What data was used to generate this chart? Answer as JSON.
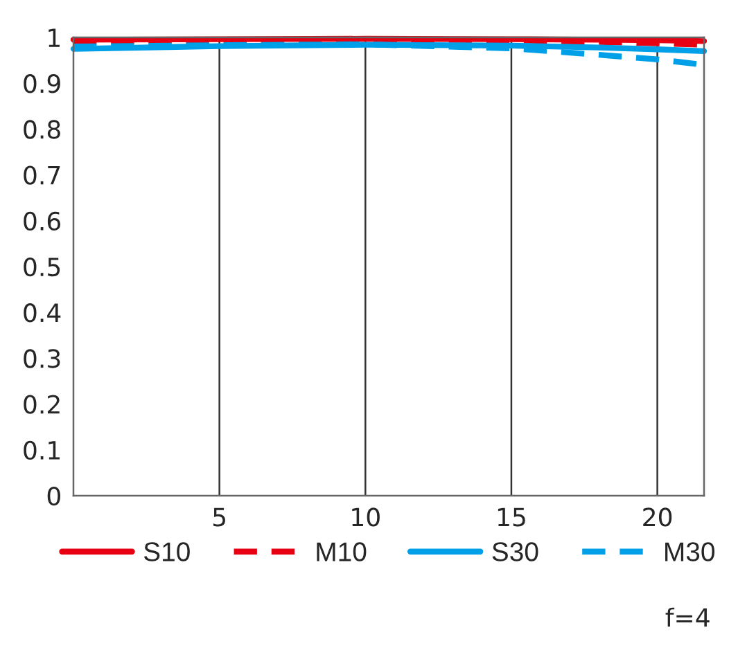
{
  "chart_data": {
    "type": "line",
    "x": [
      0,
      5,
      10,
      15,
      18,
      20,
      21.6
    ],
    "series": [
      {
        "name": "S10",
        "color": "#e60012",
        "line_style": "solid",
        "values": [
          0.995,
          0.996,
          0.997,
          0.996,
          0.995,
          0.994,
          0.992
        ]
      },
      {
        "name": "M10",
        "color": "#e60012",
        "line_style": "dashed",
        "values": [
          0.99,
          0.993,
          0.995,
          0.994,
          0.99,
          0.987,
          0.984
        ]
      },
      {
        "name": "S30",
        "color": "#00a0e9",
        "line_style": "solid",
        "values": [
          0.975,
          0.981,
          0.984,
          0.982,
          0.978,
          0.974,
          0.97
        ]
      },
      {
        "name": "M30",
        "color": "#00a0e9",
        "line_style": "dashed",
        "values": [
          0.98,
          0.983,
          0.985,
          0.976,
          0.962,
          0.952,
          0.94
        ]
      }
    ],
    "xlim": [
      0,
      21.6
    ],
    "xticks": [
      5,
      10,
      15,
      20
    ],
    "ylim": [
      0,
      1
    ],
    "yticks": [
      0,
      0.1,
      0.2,
      0.3,
      0.4,
      0.5,
      0.6,
      0.7,
      0.8,
      0.9,
      1
    ],
    "grid": "x",
    "legend": "bottom",
    "annotations": [
      "f=4"
    ]
  }
}
